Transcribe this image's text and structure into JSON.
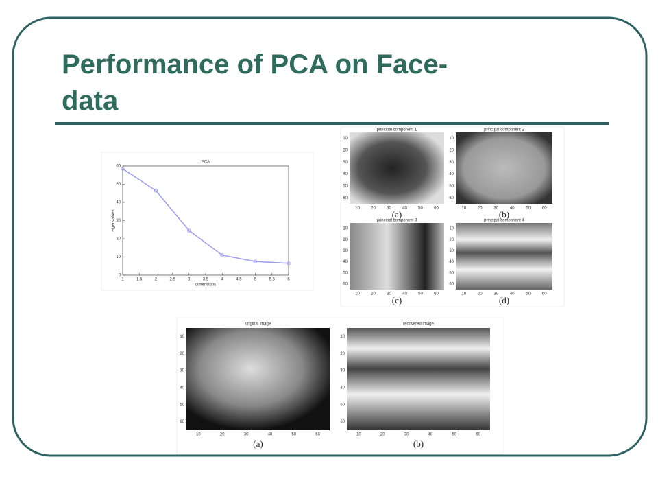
{
  "title": "Performance of PCA on Face-data",
  "chart_data": {
    "type": "line",
    "title": "PCA",
    "x_label": "dimensions",
    "y_label": "eigenvalues",
    "x": [
      1,
      2,
      3,
      4,
      5,
      6
    ],
    "values": [
      58.5,
      46.5,
      24.5,
      11,
      7.5,
      6.5
    ],
    "color": "#9a9af5",
    "xlim": [
      1,
      6
    ],
    "xticks": [
      1,
      1.5,
      2,
      2.5,
      3,
      3.5,
      4,
      4.5,
      5,
      5.5,
      6
    ],
    "ylim": [
      0,
      60
    ],
    "yticks": [
      0,
      10,
      20,
      30,
      40,
      50,
      60
    ]
  },
  "components": {
    "titles": [
      "principal component 1",
      "principal component 2",
      "principal component 3",
      "principal component 4"
    ],
    "captions": [
      "(a)",
      "(b)",
      "(c)",
      "(d)"
    ]
  },
  "reconstruction": {
    "titles": [
      "original image",
      "recovered image"
    ],
    "captions": [
      "(a)",
      "(b)"
    ]
  },
  "image_ticks": [
    10,
    20,
    30,
    40,
    50,
    60
  ]
}
